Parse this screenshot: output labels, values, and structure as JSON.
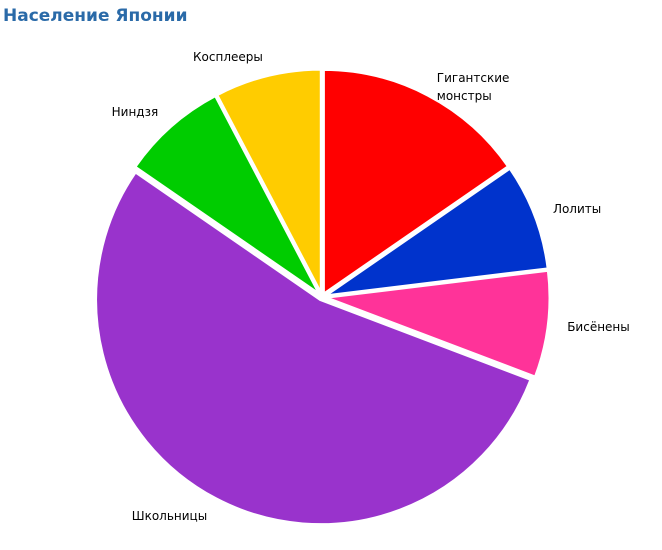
{
  "chart_data": {
    "type": "pie",
    "title": "Население Японии",
    "categories": [
      "Гигантские монстры",
      "Лолиты",
      "Бисёнены",
      "Школьницы",
      "Ниндзя",
      "Косплееры"
    ],
    "values": [
      2,
      1,
      1,
      7,
      1,
      1
    ],
    "colors": [
      "#ff0000",
      "#0033cc",
      "#ff3399",
      "#9933cc",
      "#00cc00",
      "#ffcc00"
    ]
  }
}
